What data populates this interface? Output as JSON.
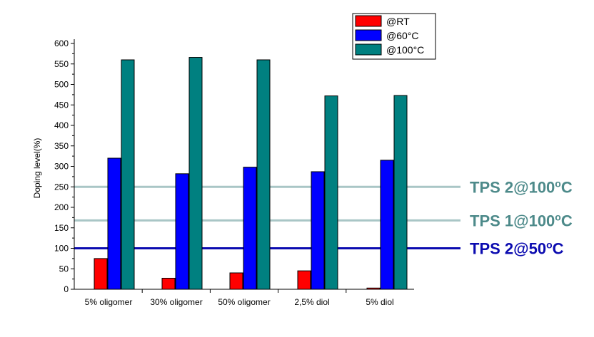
{
  "chart_data": {
    "type": "bar",
    "ylabel": "Doping level(%)",
    "ylim": [
      0,
      600
    ],
    "yticks": [
      0,
      50,
      100,
      150,
      200,
      250,
      300,
      350,
      400,
      450,
      500,
      550,
      600
    ],
    "categories": [
      "5% oligomer",
      "30% oligomer",
      "50% oligomer",
      "2,5% diol",
      "5% diol"
    ],
    "series": [
      {
        "name": "@RT",
        "color": "#ff0000",
        "values": [
          75,
          27,
          40,
          45,
          3
        ]
      },
      {
        "name": "@60°C",
        "color": "#0000ff",
        "values": [
          320,
          282,
          298,
          287,
          315
        ]
      },
      {
        "name": "@100°C",
        "color": "#008080",
        "values": [
          560,
          566,
          560,
          472,
          473
        ]
      }
    ],
    "legend_position": "top-right",
    "grid": false,
    "reference_lines": [
      {
        "value": 250,
        "label_main": "TPS 2@100",
        "label_sup": "o",
        "label_end": "C",
        "color": "#a9c6c6",
        "text_color": "#4d8a8a"
      },
      {
        "value": 168,
        "label_main": "TPS 1@100",
        "label_sup": "o",
        "label_end": "C",
        "color": "#a9c6c6",
        "text_color": "#4d8a8a"
      },
      {
        "value": 100,
        "label_main": "TPS 2@50",
        "label_sup": "o",
        "label_end": "C",
        "color": "#0b0bb0",
        "text_color": "#0b0bb0"
      }
    ]
  }
}
